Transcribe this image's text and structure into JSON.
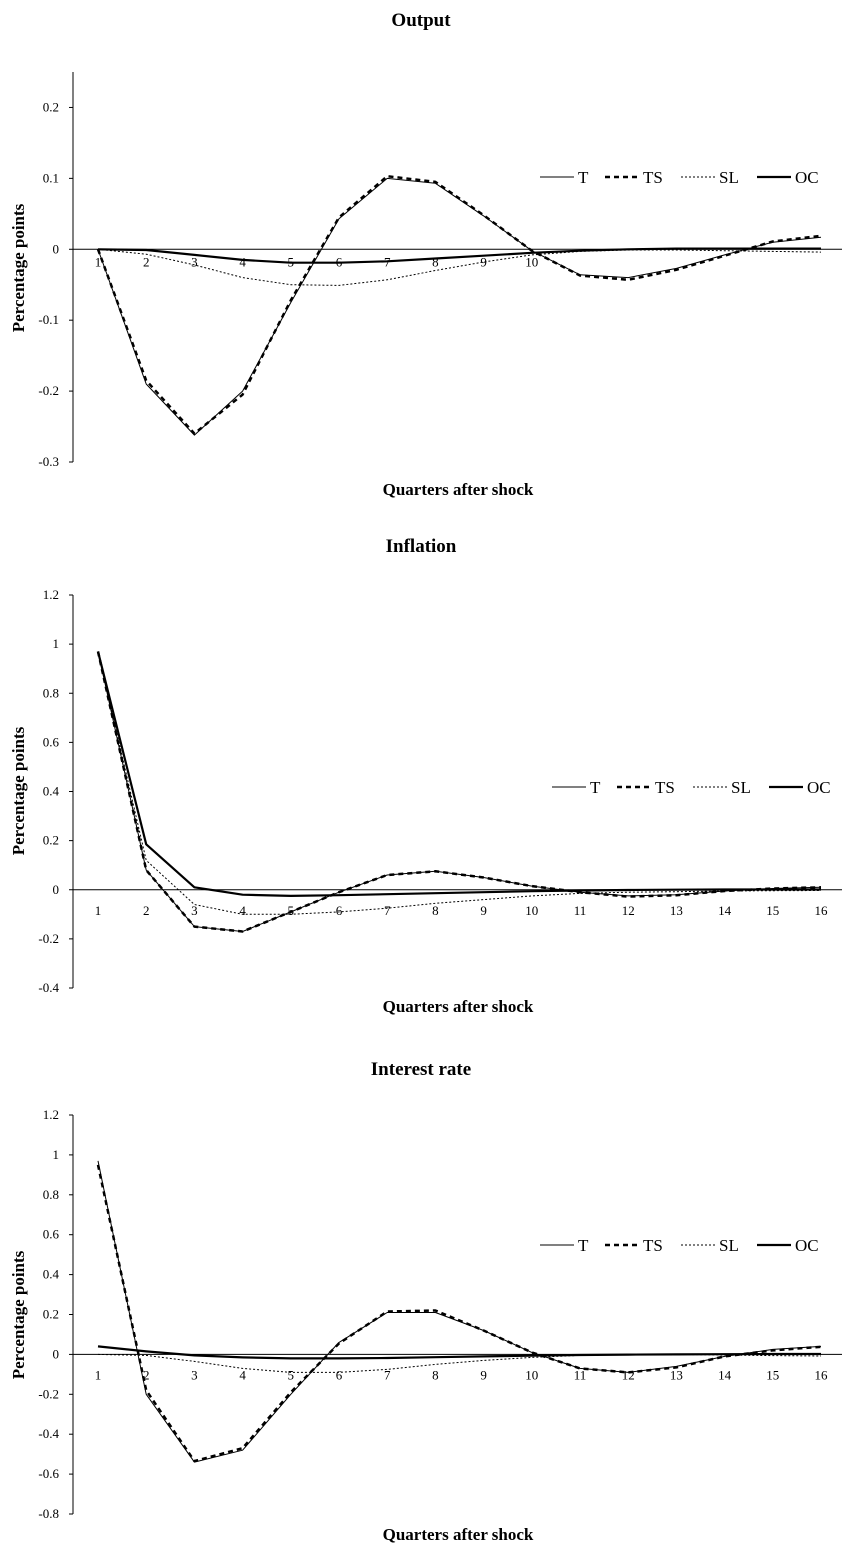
{
  "chart_data": [
    {
      "type": "line",
      "title": "Output",
      "xlabel": "Quarters after shock",
      "ylabel": "Percentage points",
      "ylim": [
        -0.3,
        0.25
      ],
      "yticks": [
        "0.2",
        "0.1",
        "0",
        "-0.1",
        "-0.2",
        "-0.3"
      ],
      "ytick_values": [
        0.2,
        0.1,
        0,
        -0.1,
        -0.2,
        -0.3
      ],
      "x": [
        1,
        2,
        3,
        4,
        5,
        6,
        7,
        8,
        9,
        10,
        11,
        12,
        13,
        14,
        15,
        16
      ],
      "xticks": [
        "1",
        "2",
        "3",
        "4",
        "5",
        "6",
        "7",
        "8",
        "9",
        "10"
      ],
      "series": [
        {
          "name": "T",
          "style": "thin",
          "values": [
            0,
            -0.19,
            -0.262,
            -0.2,
            -0.075,
            0.043,
            0.1,
            0.093,
            0.047,
            -0.002,
            -0.036,
            -0.04,
            -0.027,
            -0.008,
            0.01,
            0.017
          ]
        },
        {
          "name": "TS",
          "style": "dash",
          "values": [
            0,
            -0.185,
            -0.26,
            -0.205,
            -0.072,
            0.045,
            0.103,
            0.095,
            0.048,
            -0.002,
            -0.037,
            -0.043,
            -0.029,
            -0.009,
            0.011,
            0.019
          ]
        },
        {
          "name": "SL",
          "style": "dot",
          "values": [
            0,
            -0.007,
            -0.022,
            -0.04,
            -0.05,
            -0.051,
            -0.043,
            -0.03,
            -0.018,
            -0.008,
            -0.003,
            -0.001,
            -0.001,
            -0.002,
            -0.003,
            -0.004
          ]
        },
        {
          "name": "OC",
          "style": "thick",
          "values": [
            0,
            -0.001,
            -0.008,
            -0.015,
            -0.019,
            -0.019,
            -0.017,
            -0.013,
            -0.009,
            -0.005,
            -0.002,
            0,
            0.001,
            0.001,
            0.001,
            0.001
          ]
        }
      ],
      "legend": "inside-right"
    },
    {
      "type": "line",
      "title": "Inflation",
      "xlabel": "Quarters after shock",
      "ylabel": "Percentage points",
      "ylim": [
        -0.4,
        1.2
      ],
      "yticks": [
        "1.2",
        "1",
        "0.8",
        "0.6",
        "0.4",
        "0.2",
        "0",
        "-0.2",
        "-0.4"
      ],
      "ytick_values": [
        1.2,
        1,
        0.8,
        0.6,
        0.4,
        0.2,
        0,
        -0.2,
        -0.4
      ],
      "x": [
        1,
        2,
        3,
        4,
        5,
        6,
        7,
        8,
        9,
        10,
        11,
        12,
        13,
        14,
        15,
        16
      ],
      "xticks": [
        "1",
        "2",
        "3",
        "4",
        "5",
        "6",
        "7",
        "8",
        "9",
        "10",
        "11",
        "12",
        "13",
        "14",
        "15",
        "16"
      ],
      "series": [
        {
          "name": "T",
          "style": "thin",
          "values": [
            0.97,
            0.08,
            -0.15,
            -0.17,
            -0.09,
            -0.01,
            0.06,
            0.075,
            0.05,
            0.015,
            -0.01,
            -0.025,
            -0.02,
            -0.005,
            0.005,
            0.01
          ]
        },
        {
          "name": "TS",
          "style": "dash",
          "values": [
            0.97,
            0.08,
            -0.15,
            -0.17,
            -0.09,
            -0.01,
            0.06,
            0.075,
            0.05,
            0.015,
            -0.01,
            -0.028,
            -0.022,
            -0.005,
            0.005,
            0.01
          ]
        },
        {
          "name": "SL",
          "style": "dot",
          "values": [
            0.97,
            0.12,
            -0.06,
            -0.1,
            -0.1,
            -0.09,
            -0.075,
            -0.055,
            -0.04,
            -0.025,
            -0.015,
            -0.01,
            -0.008,
            -0.005,
            -0.004,
            -0.003
          ]
        },
        {
          "name": "OC",
          "style": "thick",
          "values": [
            0.97,
            0.185,
            0.01,
            -0.02,
            -0.025,
            -0.022,
            -0.018,
            -0.014,
            -0.01,
            -0.006,
            -0.003,
            -0.001,
            0,
            0.001,
            0.001,
            0.001
          ]
        }
      ],
      "legend": "inside-right"
    },
    {
      "type": "line",
      "title": "Interest rate",
      "xlabel": "Quarters after shock",
      "ylabel": "Percentage points",
      "ylim": [
        -0.8,
        1.2
      ],
      "yticks": [
        "1.2",
        "1",
        "0.8",
        "0.6",
        "0.4",
        "0.2",
        "0",
        "-0.2",
        "-0.4",
        "-0.6",
        "-0.8"
      ],
      "ytick_values": [
        1.2,
        1,
        0.8,
        0.6,
        0.4,
        0.2,
        0,
        -0.2,
        -0.4,
        -0.6,
        -0.8
      ],
      "x": [
        1,
        2,
        3,
        4,
        5,
        6,
        7,
        8,
        9,
        10,
        11,
        12,
        13,
        14,
        15,
        16
      ],
      "xticks": [
        "1",
        "2",
        "3",
        "4",
        "5",
        "6",
        "7",
        "8",
        "9",
        "10",
        "11",
        "12",
        "13",
        "14",
        "15",
        "16"
      ],
      "series": [
        {
          "name": "T",
          "style": "thin",
          "values": [
            0.97,
            -0.2,
            -0.54,
            -0.48,
            -0.2,
            0.06,
            0.21,
            0.21,
            0.12,
            0.01,
            -0.07,
            -0.09,
            -0.06,
            -0.01,
            0.025,
            0.04
          ]
        },
        {
          "name": "TS",
          "style": "dash",
          "values": [
            0.95,
            -0.18,
            -0.535,
            -0.47,
            -0.19,
            0.055,
            0.215,
            0.22,
            0.12,
            0.01,
            -0.07,
            -0.09,
            -0.065,
            -0.01,
            0.02,
            0.038
          ]
        },
        {
          "name": "SL",
          "style": "dot",
          "values": [
            0,
            -0.005,
            -0.035,
            -0.07,
            -0.09,
            -0.09,
            -0.075,
            -0.05,
            -0.03,
            -0.015,
            -0.005,
            0,
            0,
            -0.003,
            -0.006,
            -0.008
          ]
        },
        {
          "name": "OC",
          "style": "thick",
          "values": [
            0.04,
            0.015,
            -0.005,
            -0.015,
            -0.02,
            -0.02,
            -0.018,
            -0.014,
            -0.01,
            -0.006,
            -0.003,
            -0.001,
            0,
            0.001,
            0.002,
            0.002
          ]
        }
      ],
      "legend": "inside-right"
    }
  ]
}
